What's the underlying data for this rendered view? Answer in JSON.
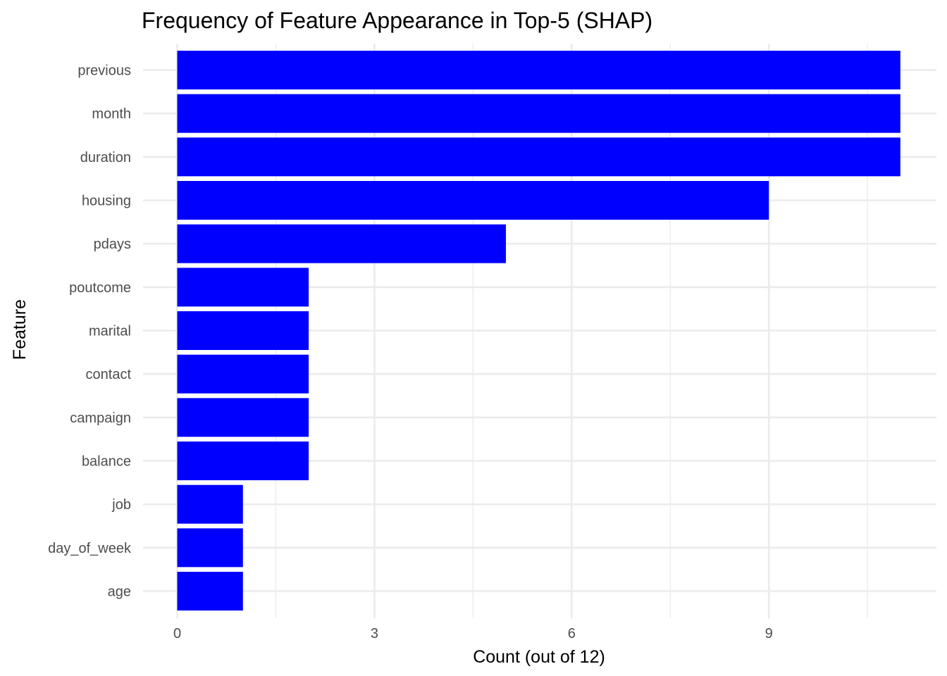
{
  "chart_data": {
    "type": "bar",
    "orientation": "horizontal",
    "title": "Frequency of Feature Appearance in Top-5 (SHAP)",
    "xlabel": "Count (out of 12)",
    "ylabel": "Feature",
    "categories": [
      "previous",
      "month",
      "duration",
      "housing",
      "pdays",
      "poutcome",
      "marital",
      "contact",
      "campaign",
      "balance",
      "job",
      "day_of_week",
      "age"
    ],
    "values": [
      11,
      11,
      11,
      9,
      5,
      2,
      2,
      2,
      2,
      2,
      1,
      1,
      1
    ],
    "xlim": [
      0,
      11
    ],
    "xticks": [
      0,
      3,
      6,
      9
    ],
    "bar_color": "#0000ff",
    "grid": true,
    "legend": "none"
  }
}
